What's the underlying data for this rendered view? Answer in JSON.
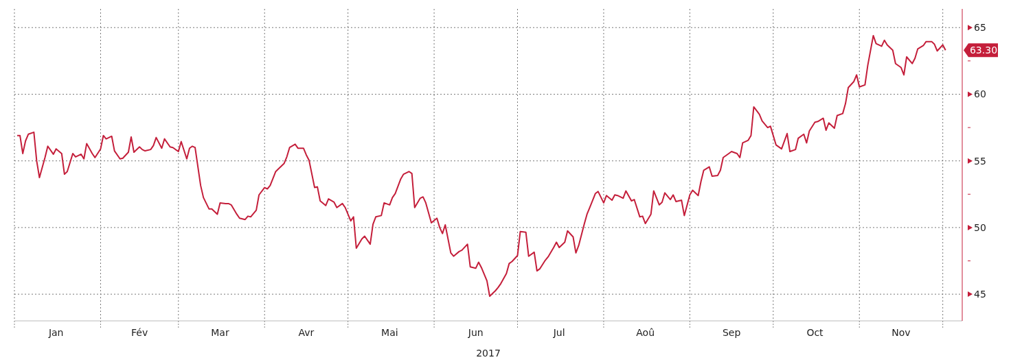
{
  "chart_data": {
    "type": "line",
    "xlabel": "2017",
    "color": "#c41e3a",
    "x": [
      "2017-01-02",
      "2017-01-03",
      "2017-01-04",
      "2017-01-05",
      "2017-01-06",
      "2017-01-08",
      "2017-01-09",
      "2017-01-10",
      "2017-01-12",
      "2017-01-13",
      "2017-01-15",
      "2017-01-16",
      "2017-01-18",
      "2017-01-19",
      "2017-01-20",
      "2017-01-22",
      "2017-01-23",
      "2017-01-25",
      "2017-01-26",
      "2017-01-27",
      "2017-01-29",
      "2017-01-30",
      "2017-02-01",
      "2017-02-02",
      "2017-02-03",
      "2017-02-05",
      "2017-02-06",
      "2017-02-08",
      "2017-02-09",
      "2017-02-11",
      "2017-02-12",
      "2017-02-13",
      "2017-02-15",
      "2017-02-16",
      "2017-02-17",
      "2017-02-19",
      "2017-02-20",
      "2017-02-21",
      "2017-02-23",
      "2017-02-24",
      "2017-02-26",
      "2017-02-27",
      "2017-03-01",
      "2017-03-02",
      "2017-03-04",
      "2017-03-05",
      "2017-03-06",
      "2017-03-07",
      "2017-03-09",
      "2017-03-10",
      "2017-03-12",
      "2017-03-13",
      "2017-03-15",
      "2017-03-16",
      "2017-03-18",
      "2017-03-19",
      "2017-03-20",
      "2017-03-22",
      "2017-03-23",
      "2017-03-25",
      "2017-03-26",
      "2017-03-27",
      "2017-03-29",
      "2017-03-30",
      "2017-04-01",
      "2017-04-02",
      "2017-04-03",
      "2017-04-05",
      "2017-04-06",
      "2017-04-08",
      "2017-04-09",
      "2017-04-10",
      "2017-04-12",
      "2017-04-13",
      "2017-04-15",
      "2017-04-16",
      "2017-04-17",
      "2017-04-19",
      "2017-04-20",
      "2017-04-21",
      "2017-04-23",
      "2017-04-24",
      "2017-04-26",
      "2017-04-27",
      "2017-04-29",
      "2017-04-30",
      "2017-05-02",
      "2017-05-03",
      "2017-05-04",
      "2017-05-06",
      "2017-05-07",
      "2017-05-09",
      "2017-05-10",
      "2017-05-11",
      "2017-05-13",
      "2017-05-14",
      "2017-05-16",
      "2017-05-17",
      "2017-05-18",
      "2017-05-20",
      "2017-05-21",
      "2017-05-23",
      "2017-05-24",
      "2017-05-25",
      "2017-05-27",
      "2017-05-28",
      "2017-05-29",
      "2017-05-31",
      "2017-06-02",
      "2017-06-03",
      "2017-06-04",
      "2017-06-05",
      "2017-06-07",
      "2017-06-08",
      "2017-06-10",
      "2017-06-11",
      "2017-06-13",
      "2017-06-14",
      "2017-06-16",
      "2017-06-17",
      "2017-06-18",
      "2017-06-20",
      "2017-06-21",
      "2017-06-23",
      "2017-06-24",
      "2017-06-25",
      "2017-06-27",
      "2017-06-28",
      "2017-06-29",
      "2017-07-01",
      "2017-07-02",
      "2017-07-04",
      "2017-07-05",
      "2017-07-07",
      "2017-07-08",
      "2017-07-09",
      "2017-07-11",
      "2017-07-12",
      "2017-07-14",
      "2017-07-15",
      "2017-07-16",
      "2017-07-18",
      "2017-07-19",
      "2017-07-21",
      "2017-07-22",
      "2017-07-23",
      "2017-07-25",
      "2017-07-26",
      "2017-07-27",
      "2017-07-29",
      "2017-07-30",
      "2017-08-01",
      "2017-08-02",
      "2017-08-04",
      "2017-08-05",
      "2017-08-06",
      "2017-08-08",
      "2017-08-09",
      "2017-08-11",
      "2017-08-12",
      "2017-08-14",
      "2017-08-15",
      "2017-08-16",
      "2017-08-18",
      "2017-08-19",
      "2017-08-21",
      "2017-08-22",
      "2017-08-23",
      "2017-08-25",
      "2017-08-26",
      "2017-08-27",
      "2017-08-29",
      "2017-08-30",
      "2017-09-01",
      "2017-09-02",
      "2017-09-04",
      "2017-09-05",
      "2017-09-06",
      "2017-09-08",
      "2017-09-09",
      "2017-09-11",
      "2017-09-12",
      "2017-09-13",
      "2017-09-15",
      "2017-09-16",
      "2017-09-18",
      "2017-09-19",
      "2017-09-20",
      "2017-09-22",
      "2017-09-23",
      "2017-09-24",
      "2017-09-26",
      "2017-09-27",
      "2017-09-29",
      "2017-09-30",
      "2017-10-02",
      "2017-10-04",
      "2017-10-06",
      "2017-10-07",
      "2017-10-09",
      "2017-10-10",
      "2017-10-12",
      "2017-10-13",
      "2017-10-14",
      "2017-10-16",
      "2017-10-17",
      "2017-10-19",
      "2017-10-20",
      "2017-10-21",
      "2017-10-23",
      "2017-10-24",
      "2017-10-26",
      "2017-10-27",
      "2017-10-28",
      "2017-10-30",
      "2017-10-31",
      "2017-11-01",
      "2017-11-03",
      "2017-11-04",
      "2017-11-06",
      "2017-11-07",
      "2017-11-09",
      "2017-11-10",
      "2017-11-11",
      "2017-11-13",
      "2017-11-14",
      "2017-11-16",
      "2017-11-17",
      "2017-11-18",
      "2017-11-20",
      "2017-11-21",
      "2017-11-22",
      "2017-11-24",
      "2017-11-25",
      "2017-11-27",
      "2017-11-28",
      "2017-11-29",
      "2017-12-01",
      "2017-12-02"
    ],
    "values": [
      56.9,
      56.9,
      55.55,
      56.5,
      57.0,
      57.15,
      55.0,
      53.75,
      55.25,
      56.1,
      55.5,
      55.9,
      55.55,
      54.0,
      54.2,
      55.55,
      55.3,
      55.5,
      55.15,
      56.3,
      55.55,
      55.25,
      55.9,
      56.9,
      56.65,
      56.85,
      55.75,
      55.15,
      55.2,
      55.65,
      56.8,
      55.65,
      56.05,
      55.85,
      55.75,
      55.85,
      56.15,
      56.75,
      55.95,
      56.65,
      56.05,
      56.0,
      55.7,
      56.45,
      55.15,
      55.95,
      56.1,
      56.0,
      53.15,
      52.25,
      51.4,
      51.4,
      51.0,
      51.85,
      51.8,
      51.8,
      51.7,
      51.0,
      50.7,
      50.6,
      50.85,
      50.8,
      51.3,
      52.45,
      53.0,
      52.9,
      53.15,
      54.2,
      54.4,
      54.8,
      55.3,
      56.0,
      56.25,
      55.95,
      55.95,
      55.45,
      55.05,
      53.0,
      53.05,
      52.0,
      51.65,
      52.15,
      51.9,
      51.5,
      51.8,
      51.5,
      50.5,
      50.8,
      48.45,
      49.15,
      49.35,
      48.75,
      50.25,
      50.8,
      50.9,
      51.85,
      51.7,
      52.25,
      52.55,
      53.65,
      54.0,
      54.2,
      54.05,
      51.5,
      52.2,
      52.3,
      51.85,
      50.35,
      50.7,
      50.0,
      49.55,
      50.2,
      48.1,
      47.85,
      48.2,
      48.3,
      48.75,
      47.05,
      46.95,
      47.4,
      47.0,
      46.0,
      44.85,
      45.25,
      45.5,
      45.8,
      46.55,
      47.3,
      47.45,
      47.9,
      49.7,
      49.65,
      47.85,
      48.15,
      46.75,
      46.9,
      47.55,
      47.8,
      48.5,
      48.9,
      48.5,
      48.9,
      49.75,
      49.3,
      48.1,
      48.65,
      50.25,
      51.0,
      51.5,
      52.55,
      52.7,
      51.85,
      52.4,
      52.05,
      52.45,
      52.4,
      52.2,
      52.75,
      52.0,
      52.1,
      50.8,
      50.85,
      50.3,
      51.0,
      52.75,
      51.7,
      51.9,
      52.6,
      52.1,
      52.45,
      51.95,
      52.05,
      50.9,
      52.45,
      52.8,
      52.4,
      53.45,
      54.3,
      54.55,
      53.85,
      53.9,
      54.3,
      55.25,
      55.55,
      55.7,
      55.55,
      55.25,
      56.35,
      56.55,
      56.9,
      59.05,
      58.5,
      58.0,
      57.5,
      57.6,
      56.2,
      55.9,
      57.05,
      55.7,
      55.85,
      56.7,
      57.0,
      56.35,
      57.25,
      57.9,
      57.95,
      58.2,
      57.3,
      57.85,
      57.45,
      58.4,
      58.55,
      59.3,
      60.5,
      60.95,
      61.45,
      60.55,
      60.7,
      62.15,
      64.4,
      63.8,
      63.6,
      64.05,
      63.7,
      63.3,
      62.3,
      62.0,
      61.45,
      62.8,
      62.3,
      62.7,
      63.4,
      63.65,
      63.95,
      63.95,
      63.75,
      63.25,
      63.7,
      63.3
    ],
    "xlim": [
      "2017-01-01",
      "2017-12-08"
    ],
    "xticks": [
      {
        "value": "2017-01-01",
        "label": null
      },
      {
        "value": "2017-01-16",
        "label": "Jan"
      },
      {
        "value": "2017-02-01",
        "label": null
      },
      {
        "value": "2017-02-15",
        "label": "Fév"
      },
      {
        "value": "2017-03-01",
        "label": null
      },
      {
        "value": "2017-03-16",
        "label": "Mar"
      },
      {
        "value": "2017-04-01",
        "label": null
      },
      {
        "value": "2017-04-16",
        "label": "Avr"
      },
      {
        "value": "2017-05-01",
        "label": null
      },
      {
        "value": "2017-05-16",
        "label": "Mai"
      },
      {
        "value": "2017-06-01",
        "label": null
      },
      {
        "value": "2017-06-16",
        "label": "Jun"
      },
      {
        "value": "2017-07-01",
        "label": null
      },
      {
        "value": "2017-07-16",
        "label": "Jul"
      },
      {
        "value": "2017-08-01",
        "label": null
      },
      {
        "value": "2017-08-16",
        "label": "Aoû"
      },
      {
        "value": "2017-09-01",
        "label": null
      },
      {
        "value": "2017-09-16",
        "label": "Sep"
      },
      {
        "value": "2017-10-01",
        "label": null
      },
      {
        "value": "2017-10-16",
        "label": "Oct"
      },
      {
        "value": "2017-11-01",
        "label": null
      },
      {
        "value": "2017-11-16",
        "label": "Nov"
      },
      {
        "value": "2017-12-01",
        "label": null
      }
    ],
    "ylim": [
      43,
      66.4
    ],
    "yticks": [
      45,
      {
        "value": 47.5,
        "label": null
      },
      50,
      {
        "value": 52.5,
        "label": null
      },
      55,
      {
        "value": 57.5,
        "label": null
      },
      60,
      {
        "value": 62.5,
        "label": null
      },
      65
    ],
    "grid": true,
    "annotations": [
      {
        "text": "63.30",
        "x": "2017-12-02",
        "y": 63.3
      }
    ]
  }
}
